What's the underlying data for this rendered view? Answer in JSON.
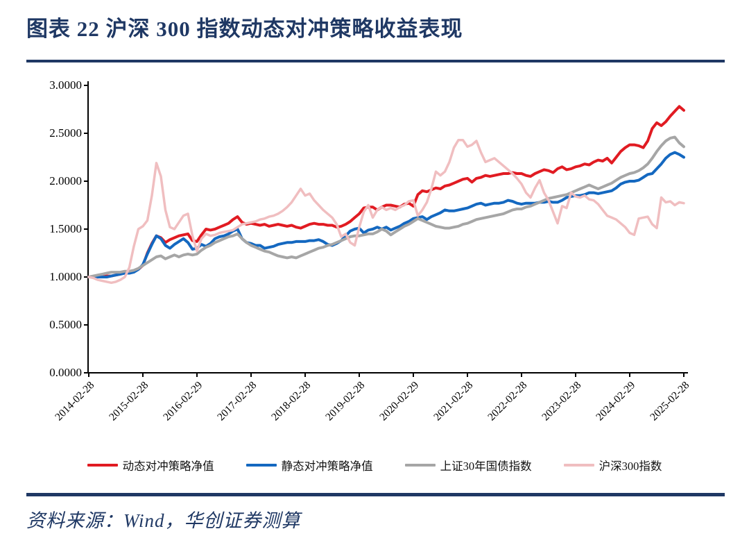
{
  "header": {
    "title": "图表 22  沪深 300 指数动态对冲策略收益表现"
  },
  "source": {
    "text": "资料来源：Wind，华创证券测算"
  },
  "colors": {
    "accent_navy": "#1f3864",
    "axis": "#000000",
    "series_dynamic": "#e11b22",
    "series_static": "#1468c0",
    "series_bond": "#a6a6a6",
    "series_csi300": "#f0bec0"
  },
  "chart_data": {
    "type": "line",
    "title": "沪深300指数动态对冲策略收益表现",
    "xlabel": "",
    "ylabel": "",
    "ylim": [
      0,
      3
    ],
    "grid": false,
    "legend_position": "bottom",
    "x_label_rotation": -45,
    "y_ticks": [
      "0.0000",
      "0.5000",
      "1.0000",
      "1.5000",
      "2.0000",
      "2.5000",
      "3.0000"
    ],
    "x_tick_labels": [
      "2014-02-28",
      "2015-02-28",
      "2016-02-29",
      "2017-02-28",
      "2018-02-28",
      "2019-02-28",
      "2020-02-29",
      "2021-02-28",
      "2022-02-28",
      "2023-02-28",
      "2024-02-29",
      "2025-02-28"
    ],
    "months_per_point": 1,
    "points_per_x_tick": 12,
    "series": [
      {
        "name": "动态对冲策略净值",
        "color": "#e11b22",
        "values": [
          1.0,
          1.0,
          1.01,
          1.0,
          1.01,
          1.01,
          1.02,
          1.03,
          1.05,
          1.04,
          1.06,
          1.08,
          1.12,
          1.25,
          1.35,
          1.43,
          1.41,
          1.36,
          1.39,
          1.41,
          1.43,
          1.44,
          1.45,
          1.38,
          1.37,
          1.44,
          1.5,
          1.49,
          1.5,
          1.52,
          1.54,
          1.56,
          1.6,
          1.63,
          1.57,
          1.55,
          1.56,
          1.55,
          1.54,
          1.55,
          1.53,
          1.54,
          1.55,
          1.54,
          1.53,
          1.54,
          1.52,
          1.51,
          1.53,
          1.55,
          1.56,
          1.55,
          1.55,
          1.54,
          1.54,
          1.52,
          1.53,
          1.55,
          1.58,
          1.62,
          1.66,
          1.72,
          1.73,
          1.73,
          1.7,
          1.73,
          1.75,
          1.75,
          1.74,
          1.73,
          1.76,
          1.77,
          1.74,
          1.86,
          1.9,
          1.89,
          1.91,
          1.93,
          1.92,
          1.95,
          1.96,
          1.98,
          2.0,
          2.02,
          2.03,
          1.99,
          2.03,
          2.04,
          2.06,
          2.05,
          2.06,
          2.07,
          2.08,
          2.08,
          2.09,
          2.08,
          2.08,
          2.06,
          2.05,
          2.08,
          2.1,
          2.12,
          2.11,
          2.09,
          2.13,
          2.15,
          2.12,
          2.13,
          2.15,
          2.16,
          2.18,
          2.17,
          2.2,
          2.22,
          2.21,
          2.24,
          2.19,
          2.25,
          2.31,
          2.35,
          2.38,
          2.38,
          2.37,
          2.35,
          2.42,
          2.55,
          2.61,
          2.58,
          2.62,
          2.68,
          2.73,
          2.78,
          2.74
        ]
      },
      {
        "name": "静态对冲策略净值",
        "color": "#1468c0",
        "values": [
          1.0,
          1.0,
          1.0,
          1.0,
          1.0,
          1.01,
          1.02,
          1.03,
          1.04,
          1.04,
          1.05,
          1.08,
          1.13,
          1.24,
          1.34,
          1.43,
          1.4,
          1.33,
          1.3,
          1.34,
          1.37,
          1.4,
          1.36,
          1.29,
          1.3,
          1.34,
          1.32,
          1.35,
          1.4,
          1.42,
          1.43,
          1.45,
          1.48,
          1.5,
          1.4,
          1.36,
          1.35,
          1.33,
          1.33,
          1.3,
          1.31,
          1.32,
          1.34,
          1.35,
          1.36,
          1.36,
          1.37,
          1.37,
          1.37,
          1.38,
          1.38,
          1.39,
          1.37,
          1.34,
          1.33,
          1.35,
          1.38,
          1.43,
          1.48,
          1.5,
          1.51,
          1.46,
          1.49,
          1.5,
          1.52,
          1.5,
          1.52,
          1.49,
          1.51,
          1.53,
          1.56,
          1.58,
          1.61,
          1.62,
          1.63,
          1.6,
          1.63,
          1.65,
          1.67,
          1.7,
          1.69,
          1.69,
          1.7,
          1.71,
          1.72,
          1.74,
          1.76,
          1.77,
          1.75,
          1.76,
          1.77,
          1.77,
          1.78,
          1.8,
          1.79,
          1.77,
          1.76,
          1.77,
          1.77,
          1.77,
          1.78,
          1.78,
          1.79,
          1.78,
          1.78,
          1.8,
          1.83,
          1.84,
          1.85,
          1.85,
          1.86,
          1.88,
          1.88,
          1.87,
          1.88,
          1.89,
          1.9,
          1.93,
          1.97,
          1.99,
          2.0,
          2.0,
          2.01,
          2.04,
          2.07,
          2.08,
          2.13,
          2.18,
          2.24,
          2.28,
          2.3,
          2.28,
          2.25
        ]
      },
      {
        "name": "上证30年国债指数",
        "color": "#a6a6a6",
        "values": [
          1.0,
          1.01,
          1.02,
          1.03,
          1.04,
          1.05,
          1.05,
          1.05,
          1.06,
          1.06,
          1.07,
          1.09,
          1.12,
          1.15,
          1.18,
          1.21,
          1.22,
          1.19,
          1.21,
          1.23,
          1.21,
          1.23,
          1.24,
          1.23,
          1.24,
          1.28,
          1.31,
          1.33,
          1.36,
          1.38,
          1.4,
          1.42,
          1.43,
          1.45,
          1.4,
          1.36,
          1.33,
          1.31,
          1.29,
          1.27,
          1.26,
          1.24,
          1.22,
          1.21,
          1.2,
          1.21,
          1.2,
          1.22,
          1.24,
          1.26,
          1.28,
          1.3,
          1.31,
          1.33,
          1.34,
          1.36,
          1.38,
          1.4,
          1.42,
          1.43,
          1.43,
          1.44,
          1.45,
          1.45,
          1.47,
          1.5,
          1.48,
          1.44,
          1.47,
          1.5,
          1.53,
          1.55,
          1.58,
          1.61,
          1.59,
          1.57,
          1.55,
          1.53,
          1.52,
          1.51,
          1.51,
          1.52,
          1.53,
          1.55,
          1.56,
          1.58,
          1.6,
          1.61,
          1.62,
          1.63,
          1.64,
          1.65,
          1.66,
          1.68,
          1.7,
          1.71,
          1.71,
          1.73,
          1.74,
          1.76,
          1.78,
          1.8,
          1.82,
          1.83,
          1.84,
          1.85,
          1.86,
          1.88,
          1.9,
          1.92,
          1.94,
          1.96,
          1.94,
          1.92,
          1.94,
          1.96,
          1.98,
          2.01,
          2.04,
          2.06,
          2.08,
          2.09,
          2.11,
          2.14,
          2.18,
          2.24,
          2.31,
          2.37,
          2.42,
          2.45,
          2.46,
          2.4,
          2.36
        ]
      },
      {
        "name": "沪深300指数",
        "color": "#f0bec0",
        "values": [
          1.0,
          0.99,
          0.97,
          0.96,
          0.95,
          0.94,
          0.95,
          0.97,
          1.0,
          1.1,
          1.32,
          1.5,
          1.53,
          1.59,
          1.85,
          2.19,
          2.05,
          1.7,
          1.52,
          1.5,
          1.57,
          1.64,
          1.66,
          1.43,
          1.27,
          1.4,
          1.45,
          1.43,
          1.44,
          1.46,
          1.47,
          1.48,
          1.49,
          1.52,
          1.55,
          1.56,
          1.57,
          1.58,
          1.6,
          1.61,
          1.63,
          1.64,
          1.66,
          1.69,
          1.73,
          1.78,
          1.85,
          1.92,
          1.85,
          1.87,
          1.8,
          1.75,
          1.7,
          1.66,
          1.62,
          1.55,
          1.42,
          1.45,
          1.36,
          1.33,
          1.52,
          1.68,
          1.75,
          1.62,
          1.7,
          1.73,
          1.7,
          1.72,
          1.7,
          1.73,
          1.75,
          1.79,
          1.8,
          1.64,
          1.7,
          1.78,
          1.92,
          2.1,
          2.06,
          2.1,
          2.2,
          2.35,
          2.43,
          2.43,
          2.36,
          2.38,
          2.42,
          2.3,
          2.2,
          2.22,
          2.24,
          2.2,
          2.16,
          2.12,
          2.08,
          2.03,
          1.97,
          1.88,
          1.83,
          1.93,
          2.01,
          1.88,
          1.8,
          1.68,
          1.56,
          1.74,
          1.72,
          1.88,
          1.84,
          1.83,
          1.85,
          1.81,
          1.8,
          1.76,
          1.7,
          1.64,
          1.62,
          1.6,
          1.56,
          1.52,
          1.46,
          1.44,
          1.61,
          1.62,
          1.63,
          1.55,
          1.51,
          1.83,
          1.78,
          1.79,
          1.75,
          1.78,
          1.77
        ]
      }
    ]
  }
}
